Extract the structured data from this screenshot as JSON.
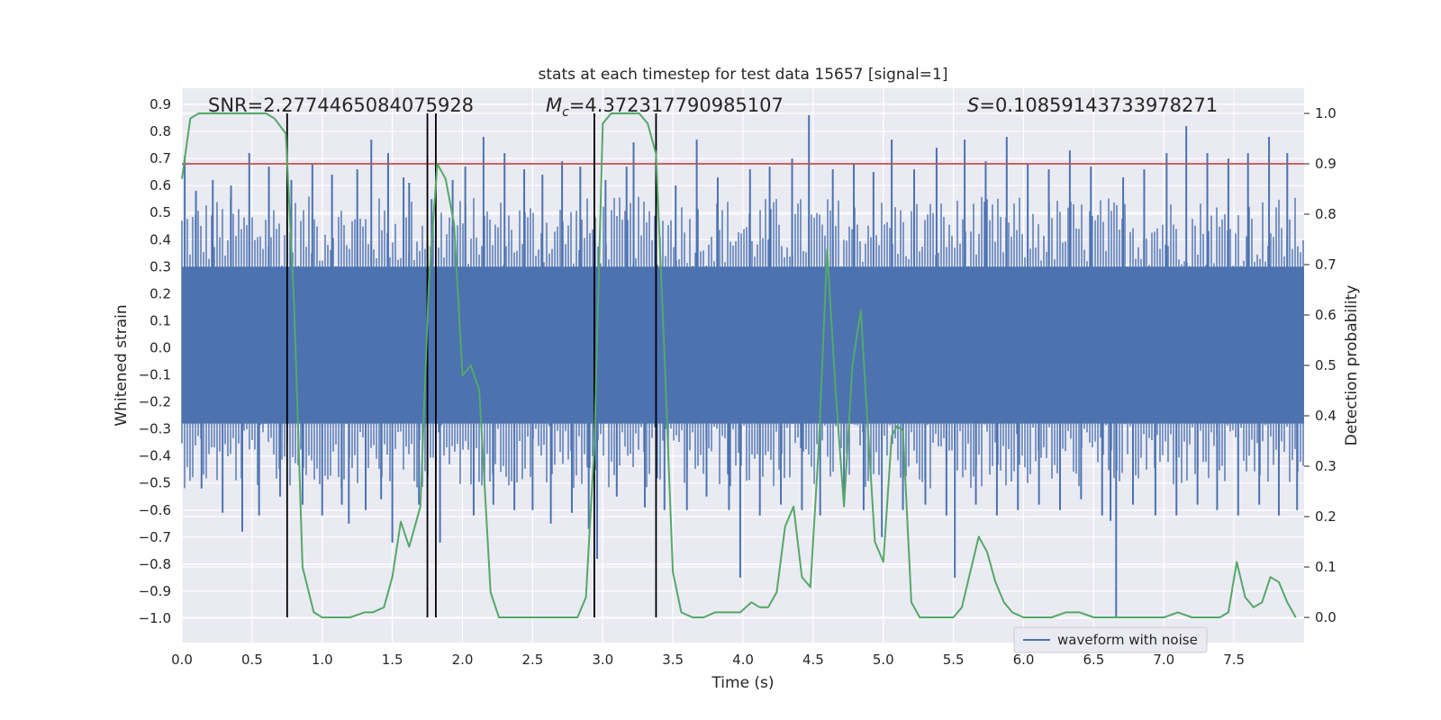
{
  "chart_data": {
    "type": "line",
    "title": "stats at each timestep for test data 15657 [signal=1]",
    "xlabel": "Time (s)",
    "ylabel_left": "Whitened strain",
    "ylabel_right": "Detection probability",
    "xlim": [
      0.0,
      8.0
    ],
    "ylim_left": [
      -1.09,
      0.96
    ],
    "ylim_right": [
      -0.05,
      1.05
    ],
    "x_ticks": [
      "0.0",
      "0.5",
      "1.0",
      "1.5",
      "2.0",
      "2.5",
      "3.0",
      "3.5",
      "4.0",
      "4.5",
      "5.0",
      "5.5",
      "6.0",
      "6.5",
      "7.0",
      "7.5"
    ],
    "y_ticks_left": [
      "0.9",
      "0.8",
      "0.7",
      "0.6",
      "0.5",
      "0.4",
      "0.3",
      "0.2",
      "0.1",
      "0.0",
      "−0.1",
      "−0.2",
      "−0.3",
      "−0.4",
      "−0.5",
      "−0.6",
      "−0.7",
      "−0.8",
      "−0.9",
      "−1.0"
    ],
    "y_ticks_right": [
      "1.0",
      "0.9",
      "0.8",
      "0.7",
      "0.6",
      "0.5",
      "0.4",
      "0.3",
      "0.2",
      "0.1",
      "0.0"
    ],
    "grid": true,
    "legend_position": "bottom-right",
    "annotations": {
      "snr": "SNR=2.2774465084075928",
      "mc_symbol": "M",
      "mc_sub": "c",
      "mc_value": "=4.372317790985107",
      "s_symbol": "S",
      "s_value": "=0.10859143733978271"
    },
    "series": [
      {
        "name": "waveform with noise",
        "axis": "left",
        "color": "#4c72b0",
        "noise_band": [
          -0.28,
          0.3
        ],
        "spikes": [
          [
            0.02,
            0.71
          ],
          [
            0.1,
            0.58
          ],
          [
            0.14,
            -0.52
          ],
          [
            0.22,
            0.62
          ],
          [
            0.29,
            -0.61
          ],
          [
            0.35,
            0.6
          ],
          [
            0.43,
            -0.68
          ],
          [
            0.48,
            0.72
          ],
          [
            0.55,
            -0.62
          ],
          [
            0.62,
            0.67
          ],
          [
            0.7,
            -0.55
          ],
          [
            0.78,
            0.62
          ],
          [
            0.86,
            -0.58
          ],
          [
            0.93,
            0.68
          ],
          [
            1.0,
            -0.62
          ],
          [
            1.07,
            0.64
          ],
          [
            1.14,
            -0.58
          ],
          [
            1.19,
            -0.65
          ],
          [
            1.25,
            0.66
          ],
          [
            1.31,
            -0.6
          ],
          [
            1.35,
            0.77
          ],
          [
            1.42,
            -0.56
          ],
          [
            1.47,
            0.72
          ],
          [
            1.5,
            -0.72
          ],
          [
            1.58,
            0.63
          ],
          [
            1.62,
            0.61
          ],
          [
            1.69,
            -0.58
          ],
          [
            1.78,
            0.55
          ],
          [
            1.84,
            -0.72
          ],
          [
            1.93,
            0.62
          ],
          [
            2.02,
            0.67
          ],
          [
            2.08,
            -0.62
          ],
          [
            2.15,
            0.78
          ],
          [
            2.22,
            -0.58
          ],
          [
            2.3,
            0.72
          ],
          [
            2.37,
            -0.6
          ],
          [
            2.44,
            0.66
          ],
          [
            2.5,
            -0.6
          ],
          [
            2.57,
            0.64
          ],
          [
            2.63,
            -0.65
          ],
          [
            2.71,
            0.69
          ],
          [
            2.78,
            -0.61
          ],
          [
            2.84,
            0.67
          ],
          [
            2.9,
            -0.67
          ],
          [
            2.96,
            -0.78
          ],
          [
            3.02,
            0.62
          ],
          [
            3.1,
            -0.55
          ],
          [
            3.17,
            0.67
          ],
          [
            3.22,
            0.76
          ],
          [
            3.3,
            -0.59
          ],
          [
            3.38,
            0.64
          ],
          [
            3.44,
            -0.6
          ],
          [
            3.52,
            0.6
          ],
          [
            3.6,
            -0.6
          ],
          [
            3.67,
            0.77
          ],
          [
            3.74,
            -0.55
          ],
          [
            3.82,
            0.63
          ],
          [
            3.9,
            -0.6
          ],
          [
            3.98,
            -0.85
          ],
          [
            4.05,
            0.66
          ],
          [
            4.12,
            -0.62
          ],
          [
            4.19,
            0.67
          ],
          [
            4.27,
            -0.58
          ],
          [
            4.35,
            0.7
          ],
          [
            4.42,
            -0.6
          ],
          [
            4.47,
            0.86
          ],
          [
            4.55,
            -0.62
          ],
          [
            4.64,
            0.66
          ],
          [
            4.72,
            -0.58
          ],
          [
            4.79,
            0.68
          ],
          [
            4.86,
            -0.6
          ],
          [
            4.93,
            0.65
          ],
          [
            4.99,
            -0.7
          ],
          [
            5.06,
            0.77
          ],
          [
            5.14,
            -0.6
          ],
          [
            5.22,
            0.66
          ],
          [
            5.3,
            -0.58
          ],
          [
            5.38,
            0.74
          ],
          [
            5.45,
            -0.62
          ],
          [
            5.51,
            -0.85
          ],
          [
            5.58,
            0.77
          ],
          [
            5.66,
            -0.58
          ],
          [
            5.73,
            0.69
          ],
          [
            5.81,
            -0.62
          ],
          [
            5.88,
            0.78
          ],
          [
            5.96,
            -0.6
          ],
          [
            6.03,
            0.68
          ],
          [
            6.11,
            -0.58
          ],
          [
            6.18,
            0.66
          ],
          [
            6.26,
            -0.6
          ],
          [
            6.33,
            0.73
          ],
          [
            6.41,
            -0.56
          ],
          [
            6.48,
            0.67
          ],
          [
            6.56,
            -0.62
          ],
          [
            6.62,
            -0.64
          ],
          [
            6.66,
            -1.0
          ],
          [
            6.71,
            0.63
          ],
          [
            6.78,
            -0.58
          ],
          [
            6.86,
            0.66
          ],
          [
            6.94,
            -0.62
          ],
          [
            7.02,
            0.72
          ],
          [
            7.09,
            -0.62
          ],
          [
            7.16,
            0.82
          ],
          [
            7.24,
            -0.58
          ],
          [
            7.31,
            0.72
          ],
          [
            7.38,
            -0.6
          ],
          [
            7.46,
            0.7
          ],
          [
            7.53,
            -0.62
          ],
          [
            7.6,
            0.72
          ],
          [
            7.68,
            -0.58
          ],
          [
            7.75,
            0.78
          ],
          [
            7.82,
            -0.62
          ],
          [
            7.88,
            0.72
          ],
          [
            7.95,
            -0.6
          ]
        ]
      },
      {
        "axis": "right",
        "color": "#55a868",
        "x": [
          0.0,
          0.06,
          0.12,
          0.2,
          0.3,
          0.4,
          0.5,
          0.6,
          0.66,
          0.74,
          0.8,
          0.86,
          0.94,
          1.0,
          1.1,
          1.2,
          1.3,
          1.36,
          1.44,
          1.5,
          1.56,
          1.62,
          1.7,
          1.76,
          1.82,
          1.88,
          1.94,
          2.0,
          2.06,
          2.12,
          2.2,
          2.26,
          2.34,
          2.42,
          2.5,
          2.6,
          2.7,
          2.76,
          2.82,
          2.88,
          2.94,
          3.0,
          3.06,
          3.14,
          3.2,
          3.26,
          3.32,
          3.38,
          3.44,
          3.5,
          3.56,
          3.64,
          3.72,
          3.8,
          3.9,
          3.98,
          4.06,
          4.12,
          4.18,
          4.24,
          4.3,
          4.36,
          4.42,
          4.48,
          4.54,
          4.6,
          4.66,
          4.72,
          4.78,
          4.84,
          4.88,
          4.94,
          5.0,
          5.06,
          5.1,
          5.14,
          5.2,
          5.26,
          5.34,
          5.42,
          5.5,
          5.56,
          5.62,
          5.68,
          5.74,
          5.8,
          5.86,
          5.92,
          6.0,
          6.1,
          6.2,
          6.3,
          6.4,
          6.5,
          6.6,
          6.7,
          6.8,
          6.9,
          7.0,
          7.1,
          7.2,
          7.3,
          7.4,
          7.46,
          7.52,
          7.58,
          7.64,
          7.7,
          7.76,
          7.82,
          7.88,
          7.94
        ],
        "y": [
          0.87,
          0.99,
          1.0,
          1.0,
          1.0,
          1.0,
          1.0,
          1.0,
          0.99,
          0.96,
          0.62,
          0.1,
          0.01,
          0.0,
          0.0,
          0.0,
          0.01,
          0.01,
          0.02,
          0.08,
          0.19,
          0.14,
          0.22,
          0.66,
          0.9,
          0.87,
          0.78,
          0.48,
          0.5,
          0.45,
          0.05,
          0.0,
          0.0,
          0.0,
          0.0,
          0.0,
          0.0,
          0.0,
          0.0,
          0.04,
          0.34,
          0.98,
          1.0,
          1.0,
          1.0,
          1.0,
          0.98,
          0.92,
          0.52,
          0.09,
          0.01,
          0.0,
          0.0,
          0.01,
          0.01,
          0.01,
          0.03,
          0.02,
          0.02,
          0.05,
          0.18,
          0.22,
          0.08,
          0.06,
          0.34,
          0.73,
          0.45,
          0.22,
          0.5,
          0.61,
          0.42,
          0.15,
          0.11,
          0.36,
          0.38,
          0.37,
          0.03,
          0.0,
          0.0,
          0.0,
          0.0,
          0.02,
          0.09,
          0.16,
          0.13,
          0.07,
          0.03,
          0.01,
          0.0,
          0.0,
          0.0,
          0.01,
          0.01,
          0.0,
          0.0,
          0.0,
          0.0,
          0.0,
          0.0,
          0.01,
          0.0,
          0.0,
          0.0,
          0.01,
          0.11,
          0.04,
          0.02,
          0.03,
          0.08,
          0.07,
          0.03,
          0.0
        ]
      }
    ],
    "threshold_line": {
      "axis": "right",
      "value": 0.9,
      "color": "#c44e52"
    },
    "vertical_markers": {
      "color": "#000000",
      "x": [
        0.75,
        1.75,
        1.81,
        2.94,
        3.38
      ]
    }
  }
}
